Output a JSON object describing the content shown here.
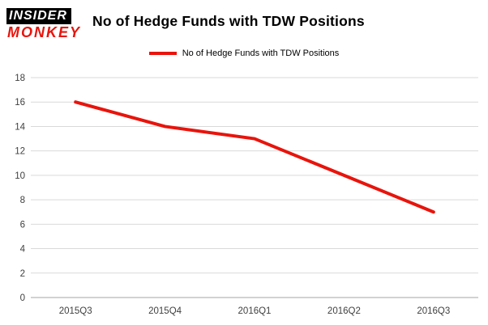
{
  "brand": {
    "line1": "INSIDER",
    "line2": "MONKEY"
  },
  "title": "No of Hedge Funds with TDW Positions",
  "legend": {
    "label": "No of Hedge Funds with TDW Positions",
    "color": "#e8140c"
  },
  "chart_data": {
    "type": "line",
    "categories": [
      "2015Q3",
      "2015Q4",
      "2016Q1",
      "2016Q2",
      "2016Q3"
    ],
    "series": [
      {
        "name": "No of Hedge Funds with TDW Positions",
        "values": [
          16,
          14,
          13,
          10,
          7
        ],
        "color": "#e8140c",
        "line_width": 4
      }
    ],
    "title": "No of Hedge Funds with TDW Positions",
    "xlabel": "",
    "ylabel": "",
    "ylim": [
      0,
      18
    ],
    "ytick_step": 2,
    "grid": true,
    "legend_position": "top-center",
    "colors": {
      "gridline": "#d9d9d9",
      "axis_line": "#a6a6a6",
      "tick_label": "#404040"
    }
  }
}
